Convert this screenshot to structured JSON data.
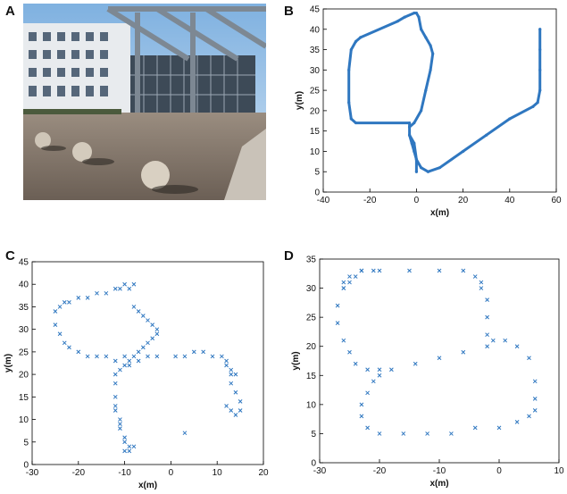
{
  "panels": {
    "A": {
      "letter": "A"
    },
    "B": {
      "letter": "B"
    },
    "C": {
      "letter": "C"
    },
    "D": {
      "letter": "D"
    }
  },
  "colors": {
    "trajectory": "#2f77c0",
    "frame": "#000000"
  },
  "chart_data": [
    {
      "id": "B",
      "type": "line",
      "title": "",
      "xlabel": "x(m)",
      "ylabel": "y(m)",
      "xlim": [
        -40,
        60
      ],
      "ylim": [
        0,
        45
      ],
      "xticks": [
        -40,
        -20,
        0,
        20,
        40,
        60
      ],
      "yticks": [
        0,
        5,
        10,
        15,
        20,
        25,
        30,
        35,
        40,
        45
      ],
      "grid": false,
      "series": [
        {
          "x": [
            0,
            0,
            -1,
            -3,
            -3,
            -26,
            -28,
            -29,
            -29,
            -28,
            -26,
            -24,
            -8,
            -5,
            -1,
            0,
            1,
            2,
            4,
            6,
            7,
            6,
            4,
            2,
            -1,
            -3,
            -3,
            -2,
            -1,
            0,
            2,
            5,
            10,
            20,
            30,
            40,
            50,
            52,
            53,
            53,
            53,
            53
          ],
          "y": [
            5,
            8,
            12,
            14,
            17,
            17,
            18,
            22,
            30,
            35,
            37,
            38,
            42,
            43,
            44,
            44,
            43,
            40,
            38,
            36,
            34,
            30,
            25,
            20,
            17,
            16,
            14,
            12,
            10,
            8,
            6,
            5,
            6,
            10,
            14,
            18,
            21,
            22,
            25,
            30,
            35,
            40
          ]
        }
      ]
    },
    {
      "id": "C",
      "type": "scatter",
      "title": "",
      "xlabel": "x(m)",
      "ylabel": "y(m)",
      "xlim": [
        -30,
        20
      ],
      "ylim": [
        0,
        45
      ],
      "xticks": [
        -30,
        -20,
        -10,
        0,
        10,
        20
      ],
      "yticks": [
        0,
        5,
        10,
        15,
        20,
        25,
        30,
        35,
        40,
        45
      ],
      "grid": false,
      "series": [
        {
          "x": [
            -8,
            -9,
            -10,
            -11,
            -12,
            -14,
            -16,
            -18,
            -20,
            -22,
            -23,
            -24,
            -25,
            -25,
            -24,
            -23,
            -22,
            -20,
            -18,
            -16,
            -14,
            -12,
            -10,
            -8,
            -7,
            -6,
            -5,
            -4,
            -3,
            -3,
            -4,
            -5,
            -6,
            -7,
            -8,
            -9,
            -10,
            -11,
            -12,
            -12,
            -12,
            -12,
            -11,
            -10,
            -9,
            -8,
            -9,
            -10,
            -10,
            -11,
            -11,
            -12,
            -3,
            -5,
            -7,
            -9,
            1,
            3,
            5,
            7,
            9,
            11,
            12,
            12,
            13,
            13,
            14,
            15,
            15,
            14,
            13,
            12,
            3,
            13,
            14
          ],
          "y": [
            40,
            39,
            40,
            39,
            39,
            38,
            38,
            37,
            37,
            36,
            36,
            35,
            34,
            31,
            29,
            27,
            26,
            25,
            24,
            24,
            24,
            23,
            24,
            24,
            25,
            26,
            27,
            28,
            29,
            30,
            31,
            32,
            33,
            34,
            35,
            23,
            22,
            21,
            20,
            18,
            15,
            12,
            9,
            5,
            4,
            4,
            3,
            3,
            6,
            8,
            10,
            13,
            24,
            24,
            23,
            22,
            24,
            24,
            25,
            25,
            24,
            24,
            23,
            22,
            20,
            18,
            16,
            14,
            12,
            11,
            12,
            13,
            7,
            21,
            20
          ]
        }
      ]
    },
    {
      "id": "D",
      "type": "scatter",
      "title": "",
      "xlabel": "x(m)",
      "ylabel": "y(m)",
      "xlim": [
        -30,
        10
      ],
      "ylim": [
        0,
        35
      ],
      "xticks": [
        -30,
        -20,
        -10,
        0,
        10
      ],
      "yticks": [
        0,
        5,
        10,
        15,
        20,
        25,
        30,
        35
      ],
      "grid": false,
      "series": [
        {
          "x": [
            -26,
            -26,
            -25,
            -23,
            -20,
            -15,
            -10,
            -6,
            -4,
            -3,
            -3,
            -2,
            -2,
            -2,
            -1,
            1,
            3,
            5,
            6,
            6,
            6,
            5,
            3,
            0,
            -4,
            -8,
            -12,
            -16,
            -20,
            -22,
            -23,
            -23,
            -22,
            -21,
            -20,
            -18,
            -14,
            -10,
            -6,
            -2,
            -20,
            -22,
            -24,
            -25,
            -26,
            -27,
            -27,
            -26,
            -25,
            -24,
            -23,
            -21
          ],
          "y": [
            30,
            31,
            32,
            33,
            33,
            33,
            33,
            33,
            32,
            31,
            30,
            28,
            25,
            22,
            21,
            21,
            20,
            18,
            14,
            11,
            9,
            8,
            7,
            6,
            6,
            5,
            5,
            5,
            5,
            6,
            8,
            10,
            12,
            14,
            15,
            16,
            17,
            18,
            19,
            20,
            16,
            16,
            17,
            19,
            21,
            24,
            27,
            30,
            31,
            32,
            33,
            33
          ]
        }
      ]
    }
  ]
}
